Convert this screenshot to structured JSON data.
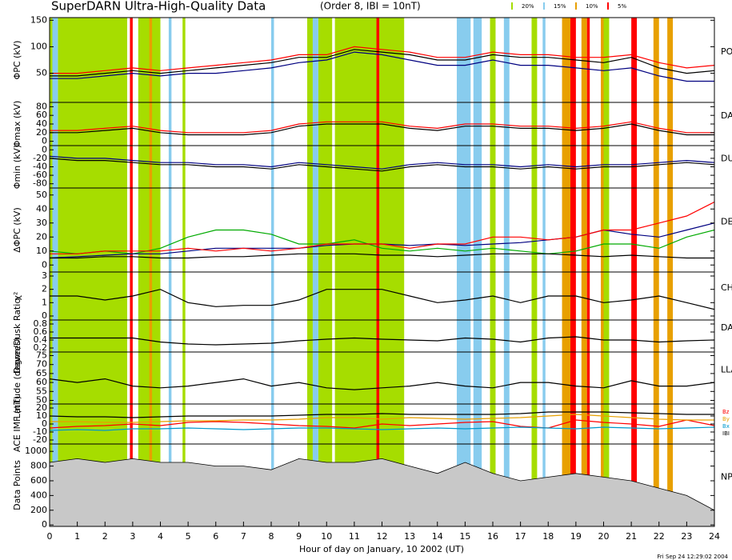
{
  "chart_data": {
    "type": "multi-panel",
    "title": "SuperDARN Ultra-High-Quality Data",
    "subtitle": "(Order 8, IBI = 10nT)",
    "xlabel": "Hour of day on January, 10 2002 (UT)",
    "timestamp": "Fri Sep 24 12:29:02 2004",
    "x": [
      0,
      1,
      2,
      3,
      4,
      5,
      6,
      7,
      8,
      9,
      10,
      11,
      12,
      13,
      14,
      15,
      16,
      17,
      18,
      19,
      20,
      21,
      22,
      23,
      24
    ],
    "xlim": [
      0,
      24
    ],
    "xticks": [
      0,
      1,
      2,
      3,
      4,
      5,
      6,
      7,
      8,
      9,
      10,
      11,
      12,
      13,
      14,
      15,
      16,
      17,
      18,
      19,
      20,
      21,
      22,
      23,
      24
    ],
    "quality_levels": [
      {
        "name": "20%",
        "color": "#a6dd00",
        "bands": [
          [
            0,
            0.1
          ],
          [
            0.3,
            2.8
          ],
          [
            3.2,
            4.0
          ],
          [
            4.8,
            4.9
          ],
          [
            9.3,
            9.5
          ],
          [
            9.7,
            10.2
          ],
          [
            10.3,
            12.8
          ],
          [
            15.9,
            16.1
          ],
          [
            17.4,
            17.6
          ],
          [
            20.0,
            20.2
          ]
        ]
      },
      {
        "name": "15%",
        "color": "#88ccee",
        "bands": [
          [
            0.1,
            0.3
          ],
          [
            4.3,
            4.4
          ],
          [
            8.0,
            8.1
          ],
          [
            9.5,
            9.7
          ],
          [
            14.7,
            15.2
          ],
          [
            15.3,
            15.6
          ],
          [
            16.4,
            16.6
          ],
          [
            17.8,
            17.9
          ]
        ]
      },
      {
        "name": "10%",
        "color": "#e8a000",
        "bands": [
          [
            3.6,
            3.7
          ],
          [
            18.5,
            18.8
          ],
          [
            19.2,
            19.4
          ],
          [
            19.9,
            20.0
          ],
          [
            21.8,
            22.0
          ],
          [
            22.3,
            22.5
          ]
        ]
      },
      {
        "name": "5%",
        "color": "#ff0000",
        "bands": [
          [
            2.9,
            3.0
          ],
          [
            11.8,
            11.9
          ],
          [
            18.8,
            19.0
          ],
          [
            19.4,
            19.5
          ],
          [
            21.0,
            21.2
          ]
        ]
      }
    ],
    "panels": [
      {
        "type": "line",
        "ylabel": "ΦPC (kV)",
        "right_label": "PO",
        "ylim": [
          -5,
          155
        ],
        "yticks": [
          50,
          100,
          150
        ],
        "series": [
          {
            "color": "#000080",
            "values": [
              40,
              40,
              45,
              50,
              45,
              50,
              50,
              55,
              60,
              70,
              75,
              90,
              85,
              75,
              65,
              65,
              75,
              65,
              65,
              60,
              55,
              60,
              45,
              35,
              35
            ]
          },
          {
            "color": "#ff0000",
            "values": [
              50,
              50,
              55,
              60,
              55,
              60,
              65,
              70,
              75,
              85,
              85,
              100,
              95,
              90,
              80,
              80,
              90,
              85,
              85,
              80,
              80,
              85,
              70,
              60,
              65
            ]
          },
          {
            "color": "#000000",
            "values": [
              45,
              45,
              50,
              55,
              50,
              55,
              60,
              65,
              70,
              80,
              80,
              95,
              90,
              85,
              75,
              75,
              85,
              80,
              80,
              75,
              70,
              80,
              60,
              50,
              55
            ]
          }
        ]
      },
      {
        "type": "line",
        "ylabel": "Φmax (kV)",
        "right_label": "DAY",
        "ylim": [
          -10,
          90
        ],
        "yticks": [
          0,
          20,
          40,
          60,
          80
        ],
        "series": [
          {
            "color": "#ff0000",
            "values": [
              25,
              25,
              30,
              35,
              25,
              20,
              20,
              20,
              25,
              40,
              45,
              45,
              45,
              35,
              30,
              40,
              40,
              35,
              35,
              30,
              35,
              45,
              30,
              20,
              20
            ]
          },
          {
            "color": "#000000",
            "values": [
              20,
              20,
              25,
              30,
              20,
              15,
              15,
              15,
              20,
              35,
              40,
              40,
              40,
              30,
              25,
              35,
              35,
              30,
              30,
              25,
              30,
              40,
              25,
              15,
              15
            ]
          }
        ]
      },
      {
        "type": "line",
        "ylabel": "Φmin (kV)",
        "right_label": "DU",
        "ylim": [
          -90,
          10
        ],
        "yticks": [
          -80,
          -60,
          -40,
          -20,
          0
        ],
        "series": [
          {
            "color": "#000080",
            "values": [
              -15,
              -20,
              -20,
              -25,
              -30,
              -30,
              -35,
              -35,
              -40,
              -30,
              -35,
              -40,
              -45,
              -35,
              -30,
              -35,
              -35,
              -40,
              -35,
              -40,
              -35,
              -35,
              -30,
              -25,
              -30
            ]
          },
          {
            "color": "#000000",
            "values": [
              -20,
              -25,
              -25,
              -30,
              -35,
              -35,
              -40,
              -40,
              -45,
              -35,
              -40,
              -45,
              -50,
              -40,
              -35,
              -40,
              -40,
              -45,
              -40,
              -45,
              -40,
              -40,
              -35,
              -30,
              -35
            ]
          }
        ]
      },
      {
        "type": "line",
        "ylabel": "ΔΦPC (kV)",
        "right_label": "DE",
        "ylim": [
          -5,
          55
        ],
        "yticks": [
          0,
          10,
          20,
          30,
          40,
          50
        ],
        "series": [
          {
            "color": "#00aa00",
            "values": [
              10,
              8,
              10,
              8,
              12,
              20,
              25,
              25,
              22,
              15,
              15,
              18,
              12,
              10,
              12,
              10,
              12,
              10,
              8,
              10,
              15,
              15,
              12,
              20,
              25
            ]
          },
          {
            "color": "#000080",
            "values": [
              5,
              6,
              7,
              8,
              8,
              10,
              12,
              12,
              12,
              12,
              14,
              15,
              15,
              14,
              15,
              14,
              15,
              16,
              18,
              20,
              25,
              22,
              20,
              25,
              30
            ]
          },
          {
            "color": "#ff0000",
            "values": [
              8,
              8,
              10,
              10,
              10,
              12,
              10,
              12,
              10,
              12,
              15,
              15,
              15,
              12,
              15,
              15,
              20,
              20,
              18,
              20,
              25,
              25,
              30,
              35,
              45
            ]
          },
          {
            "color": "#000000",
            "values": [
              5,
              5,
              6,
              6,
              5,
              5,
              6,
              6,
              7,
              8,
              8,
              8,
              7,
              7,
              6,
              7,
              8,
              8,
              8,
              7,
              6,
              7,
              6,
              5,
              5
            ]
          }
        ]
      },
      {
        "type": "line",
        "ylabel": "χ²",
        "right_label": "CH",
        "ylim": [
          -0.3,
          3.3
        ],
        "yticks": [
          0,
          1,
          2,
          3
        ],
        "series": [
          {
            "color": "#000000",
            "values": [
              1.5,
              1.5,
              1.2,
              1.5,
              2,
              1,
              0.7,
              0.8,
              0.8,
              1.2,
              2,
              2,
              2,
              1.5,
              1,
              1.2,
              1.5,
              1,
              1.5,
              1.5,
              1,
              1.2,
              1.5,
              1,
              0.5
            ]
          }
        ]
      },
      {
        "type": "line",
        "ylabel": "Dawn/Dusk Ratio",
        "right_label": "DAY",
        "ylim": [
          0.1,
          0.9
        ],
        "yticks": [
          0.2,
          0.4,
          0.6,
          0.8
        ],
        "series": [
          {
            "color": "#000000",
            "values": [
              0.45,
              0.45,
              0.45,
              0.45,
              0.35,
              0.3,
              0.28,
              0.3,
              0.32,
              0.38,
              0.42,
              0.45,
              0.42,
              0.4,
              0.38,
              0.45,
              0.42,
              0.35,
              0.45,
              0.48,
              0.4,
              0.4,
              0.35,
              0.38,
              0.4
            ]
          }
        ]
      },
      {
        "type": "line",
        "ylabel": "Latitude (degrees)",
        "right_label": "LLA",
        "ylim": [
          48,
          77
        ],
        "yticks": [
          50,
          55,
          60,
          65,
          70,
          75
        ],
        "series": [
          {
            "color": "#000000",
            "values": [
              62,
              60,
              62,
              58,
              57,
              58,
              60,
              62,
              58,
              60,
              57,
              56,
              57,
              58,
              60,
              58,
              57,
              60,
              60,
              58,
              57,
              61,
              58,
              58,
              60
            ]
          }
        ]
      },
      {
        "type": "line",
        "ylabel": "ACE IMF (nT)",
        "ylim": [
          -25,
          25
        ],
        "yticks": [
          -20,
          -10,
          0,
          10,
          20
        ],
        "series": [
          {
            "name": "Bz",
            "color": "#ff0000",
            "values": [
              -5,
              -3,
              -2,
              0,
              -2,
              2,
              3,
              2,
              0,
              -2,
              -3,
              -5,
              0,
              -2,
              0,
              2,
              3,
              -3,
              -5,
              5,
              2,
              0,
              -3,
              5,
              -2
            ]
          },
          {
            "name": "By",
            "color": "#e8a000",
            "values": [
              3,
              3,
              2,
              2,
              3,
              4,
              4,
              5,
              5,
              6,
              8,
              8,
              6,
              8,
              7,
              6,
              7,
              8,
              10,
              12,
              10,
              8,
              6,
              5,
              5
            ]
          },
          {
            "name": "Bx",
            "color": "#0099cc",
            "values": [
              -8,
              -7,
              -8,
              -6,
              -6,
              -5,
              -6,
              -7,
              -6,
              -5,
              -5,
              -6,
              -7,
              -6,
              -5,
              -6,
              -5,
              -4,
              -5,
              -6,
              -4,
              -5,
              -6,
              -5,
              -4
            ]
          },
          {
            "name": "IBI",
            "color": "#000000",
            "values": [
              10,
              9,
              9,
              8,
              9,
              10,
              10,
              10,
              10,
              11,
              12,
              12,
              13,
              12,
              12,
              12,
              12,
              13,
              15,
              15,
              15,
              14,
              13,
              12,
              12
            ]
          }
        ]
      },
      {
        "type": "area",
        "ylabel": "Data Points",
        "right_label": "NP",
        "ylim": [
          -20,
          1100
        ],
        "yticks": [
          0,
          200,
          400,
          600,
          800,
          1000
        ],
        "series": [
          {
            "color": "#c8c8c8",
            "values": [
              850,
              900,
              850,
              900,
              850,
              850,
              800,
              800,
              750,
              900,
              850,
              850,
              900,
              800,
              700,
              850,
              700,
              600,
              650,
              700,
              650,
              600,
              500,
              400,
              200
            ]
          }
        ]
      }
    ]
  }
}
